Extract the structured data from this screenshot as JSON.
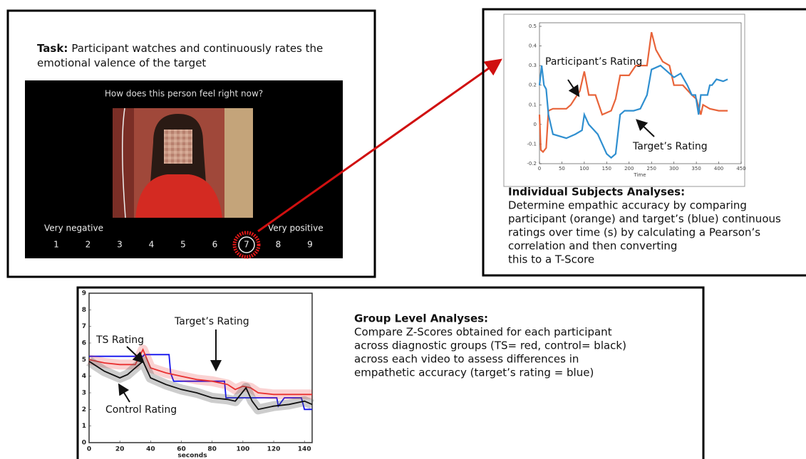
{
  "task_panel": {
    "title_bold": "Task:",
    "title_lines": [
      "Participant watches and continuously rates the",
      "emotional valence of the target"
    ],
    "question": "How does this person feel right now?",
    "scale_low": "Very negative",
    "scale_high": "Very positive",
    "scale": [
      1,
      2,
      3,
      4,
      5,
      6,
      7,
      8,
      9
    ],
    "selected": 7
  },
  "individual_analysis": {
    "heading": "Individual Subjects Analyses:",
    "lines": [
      "Determine empathic accuracy by comparing",
      "participant (orange) and target’s (blue) continuous",
      "ratings over time (s) by calculating a Pearson’s",
      "correlation and then converting",
      "this to a T-Score"
    ]
  },
  "group_analysis": {
    "heading": "Group Level Analyses:",
    "lines": [
      "Compare Z-Scores obtained for each participant",
      "across diagnostic groups (TS= red, control= black)",
      "across each video to assess differences in",
      "empathetic accuracy (target’s rating = blue)"
    ]
  },
  "chart_data": [
    {
      "type": "line",
      "x_label": "Time",
      "xlim": [
        0,
        450
      ],
      "ylim": [
        -0.2,
        0.5
      ],
      "xticks": [
        0,
        50,
        100,
        150,
        200,
        250,
        300,
        350,
        400,
        450
      ],
      "yticks": [
        -0.2,
        -0.1,
        0,
        0.1,
        0.2,
        0.3,
        0.4,
        0.5
      ],
      "series": [
        {
          "name": "Participant’s Rating",
          "color": "#e8643a",
          "x": [
            0,
            3,
            8,
            15,
            20,
            30,
            60,
            70,
            90,
            100,
            110,
            125,
            140,
            160,
            170,
            180,
            200,
            215,
            240,
            250,
            260,
            275,
            290,
            300,
            320,
            340,
            350,
            360,
            365,
            380,
            400,
            420
          ],
          "values": [
            0.05,
            -0.13,
            -0.14,
            -0.12,
            0.07,
            0.08,
            0.08,
            0.1,
            0.17,
            0.27,
            0.15,
            0.15,
            0.05,
            0.07,
            0.13,
            0.25,
            0.25,
            0.3,
            0.3,
            0.47,
            0.38,
            0.32,
            0.3,
            0.2,
            0.2,
            0.15,
            0.13,
            0.05,
            0.1,
            0.08,
            0.07,
            0.07
          ]
        },
        {
          "name": "Target’s Rating",
          "color": "#2f8fd0",
          "x": [
            0,
            5,
            10,
            15,
            20,
            30,
            60,
            80,
            95,
            100,
            110,
            130,
            150,
            160,
            170,
            180,
            190,
            210,
            225,
            240,
            250,
            270,
            300,
            315,
            330,
            340,
            348,
            355,
            360,
            375,
            380,
            385,
            395,
            410,
            420
          ],
          "values": [
            0.2,
            0.3,
            0.2,
            0.18,
            0.05,
            -0.05,
            -0.07,
            -0.05,
            -0.03,
            0.05,
            0.0,
            -0.05,
            -0.15,
            -0.17,
            -0.15,
            0.05,
            0.07,
            0.07,
            0.08,
            0.15,
            0.28,
            0.3,
            0.24,
            0.26,
            0.2,
            0.15,
            0.15,
            0.05,
            0.15,
            0.15,
            0.2,
            0.2,
            0.23,
            0.22,
            0.23
          ]
        }
      ]
    },
    {
      "type": "line",
      "x_label": "seconds",
      "xlim": [
        0,
        145
      ],
      "ylim": [
        0,
        9
      ],
      "xticks": [
        0,
        20,
        40,
        60,
        80,
        100,
        120,
        140
      ],
      "yticks": [
        0,
        1,
        2,
        3,
        4,
        5,
        6,
        7,
        8,
        9
      ],
      "series": [
        {
          "name": "Target’s Rating",
          "color": "#1010ee",
          "x": [
            0,
            35,
            36,
            52,
            53,
            55,
            88,
            89,
            122,
            123,
            127,
            138,
            140,
            145
          ],
          "values": [
            5.2,
            5.2,
            5.3,
            5.3,
            4.2,
            3.7,
            3.7,
            2.7,
            2.7,
            2.2,
            2.7,
            2.7,
            2.0,
            2.0
          ]
        },
        {
          "name": "TS Rating",
          "color": "#e83030",
          "x": [
            0,
            10,
            20,
            30,
            35,
            40,
            50,
            60,
            70,
            80,
            90,
            95,
            100,
            105,
            110,
            120,
            130,
            145
          ],
          "values": [
            5.0,
            4.8,
            4.7,
            4.7,
            5.6,
            4.5,
            4.2,
            4.0,
            3.8,
            3.7,
            3.5,
            3.2,
            3.4,
            3.3,
            3.0,
            2.9,
            2.9,
            2.9
          ]
        },
        {
          "name": "Control Rating",
          "color": "#111111",
          "x": [
            0,
            10,
            20,
            25,
            30,
            35,
            40,
            50,
            60,
            70,
            80,
            90,
            95,
            102,
            106,
            110,
            120,
            130,
            140,
            145
          ],
          "values": [
            4.9,
            4.3,
            3.9,
            4.1,
            4.5,
            4.9,
            3.9,
            3.5,
            3.2,
            3.0,
            2.7,
            2.6,
            2.5,
            3.3,
            2.5,
            2.0,
            2.2,
            2.3,
            2.5,
            2.3
          ]
        }
      ]
    }
  ]
}
